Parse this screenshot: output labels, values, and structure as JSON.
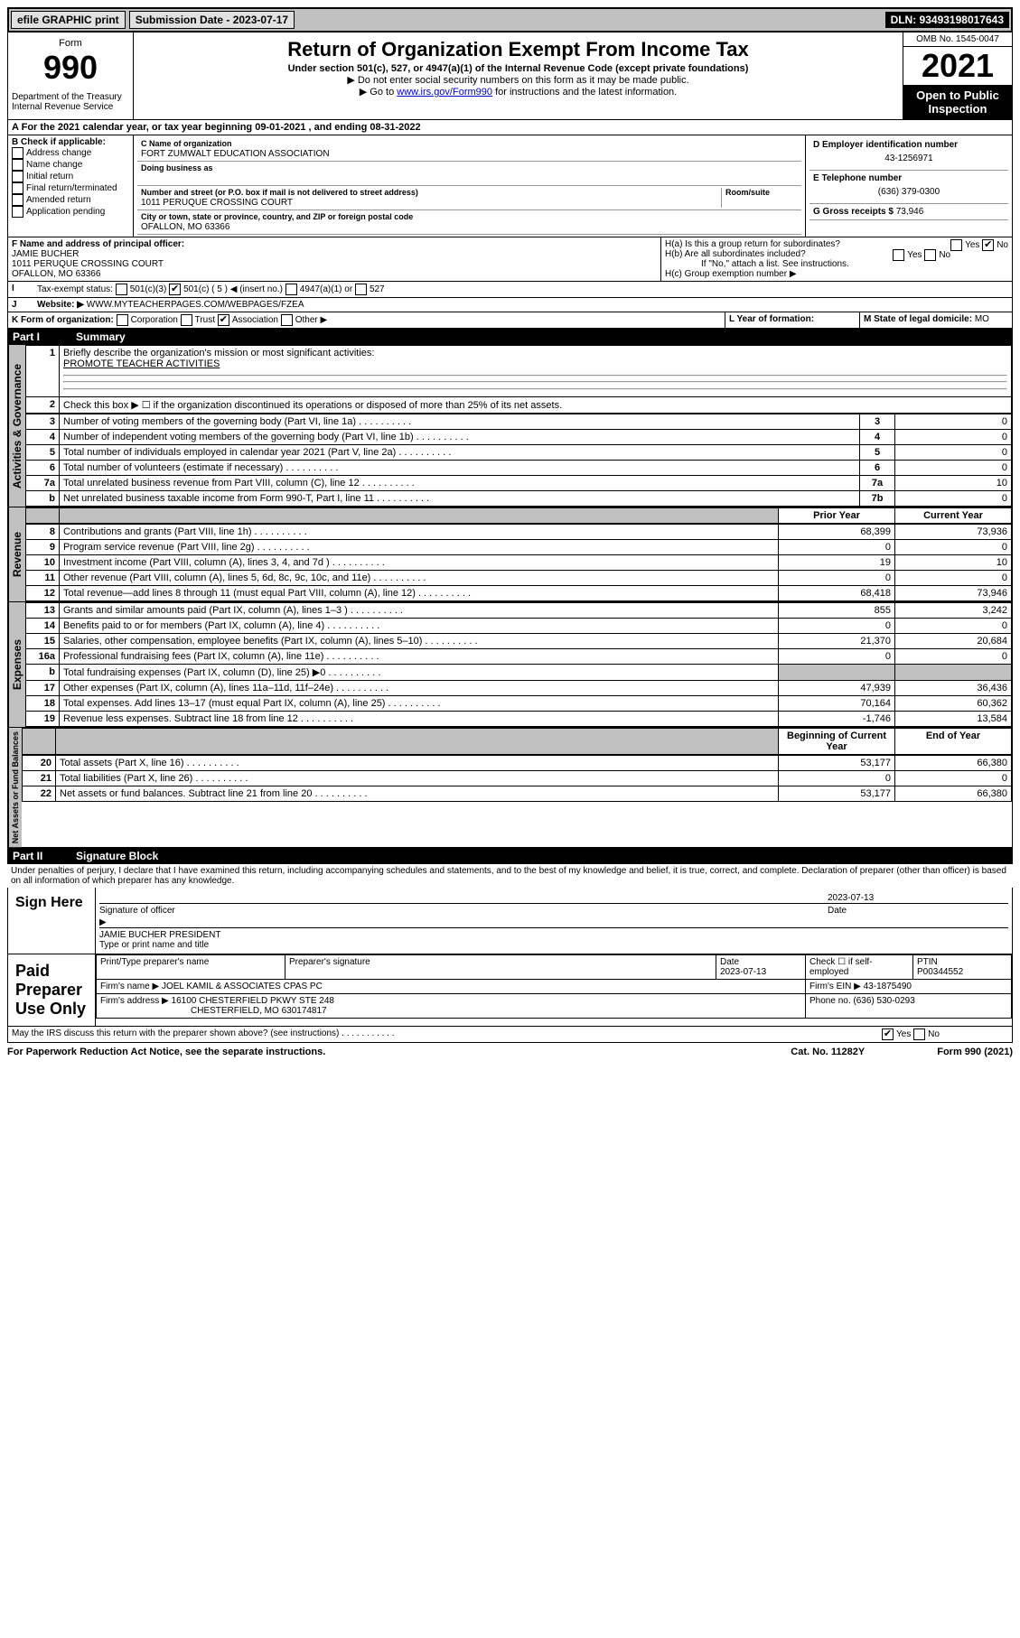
{
  "topbar": {
    "efile": "efile GRAPHIC print",
    "submission_label": "Submission Date - 2023-07-17",
    "dln": "DLN: 93493198017643"
  },
  "header": {
    "form_label": "Form",
    "form_number": "990",
    "dept": "Department of the Treasury\nInternal Revenue Service",
    "title": "Return of Organization Exempt From Income Tax",
    "subtitle": "Under section 501(c), 527, or 4947(a)(1) of the Internal Revenue Code (except private foundations)",
    "note1": "▶ Do not enter social security numbers on this form as it may be made public.",
    "note2_prefix": "▶ Go to ",
    "note2_link": "www.irs.gov/Form990",
    "note2_suffix": " for instructions and the latest information.",
    "omb": "OMB No. 1545-0047",
    "tax_year": "2021",
    "open_public": "Open to Public Inspection"
  },
  "line_A": "For the 2021 calendar year, or tax year beginning 09-01-2021   , and ending 08-31-2022",
  "block_B": {
    "label": "B Check if applicable:",
    "items": [
      "Address change",
      "Name change",
      "Initial return",
      "Final return/terminated",
      "Amended return",
      "Application pending"
    ]
  },
  "block_C": {
    "name_label": "C Name of organization",
    "name": "FORT ZUMWALT EDUCATION ASSOCIATION",
    "dba_label": "Doing business as",
    "dba": "",
    "street_label": "Number and street (or P.O. box if mail is not delivered to street address)",
    "room_label": "Room/suite",
    "street": "1011 PERUQUE CROSSING COURT",
    "city_label": "City or town, state or province, country, and ZIP or foreign postal code",
    "city": "OFALLON, MO  63366"
  },
  "block_D": {
    "ein_label": "D Employer identification number",
    "ein": "43-1256971",
    "phone_label": "E Telephone number",
    "phone": "(636) 379-0300",
    "gross_label": "G Gross receipts $",
    "gross": "73,946"
  },
  "block_F": {
    "label": "F Name and address of principal officer:",
    "name": "JAMIE BUCHER",
    "addr1": "1011 PERUQUE CROSSING COURT",
    "addr2": "OFALLON, MO  63366"
  },
  "block_H": {
    "a": "H(a)  Is this a group return for subordinates?",
    "b": "H(b)  Are all subordinates included?",
    "b_note": "If \"No,\" attach a list. See instructions.",
    "c": "H(c)  Group exemption number ▶"
  },
  "line_I": {
    "label": "Tax-exempt status:",
    "opts": [
      "501(c)(3)",
      "501(c) ( 5 ) ◀ (insert no.)",
      "4947(a)(1) or",
      "527"
    ]
  },
  "line_J": {
    "label": "Website: ▶",
    "value": "WWW.MYTEACHERPAGES.COM/WEBPAGES/FZEA"
  },
  "line_K": {
    "label": "K Form of organization:",
    "opts": [
      "Corporation",
      "Trust",
      "Association",
      "Other ▶"
    ]
  },
  "line_L": {
    "label": "L Year of formation:",
    "value": ""
  },
  "line_M": {
    "label": "M State of legal domicile:",
    "value": "MO"
  },
  "part1": {
    "header_num": "Part I",
    "header_title": "Summary",
    "q1_label": "1",
    "q1": "Briefly describe the organization's mission or most significant activities:",
    "q1_ans": "PROMOTE TEACHER ACTIVITIES",
    "q2": "Check this box ▶ ☐  if the organization discontinued its operations or disposed of more than 25% of its net assets.",
    "governance_rows": [
      {
        "n": "3",
        "t": "Number of voting members of the governing body (Part VI, line 1a)",
        "box": "3",
        "v": "0"
      },
      {
        "n": "4",
        "t": "Number of independent voting members of the governing body (Part VI, line 1b)",
        "box": "4",
        "v": "0"
      },
      {
        "n": "5",
        "t": "Total number of individuals employed in calendar year 2021 (Part V, line 2a)",
        "box": "5",
        "v": "0"
      },
      {
        "n": "6",
        "t": "Total number of volunteers (estimate if necessary)",
        "box": "6",
        "v": "0"
      },
      {
        "n": "7a",
        "t": "Total unrelated business revenue from Part VIII, column (C), line 12",
        "box": "7a",
        "v": "10"
      },
      {
        "n": "b",
        "t": "Net unrelated business taxable income from Form 990-T, Part I, line 11",
        "box": "7b",
        "v": "0"
      }
    ],
    "col_prior": "Prior Year",
    "col_current": "Current Year",
    "revenue_rows": [
      {
        "n": "8",
        "t": "Contributions and grants (Part VIII, line 1h)",
        "p": "68,399",
        "c": "73,936"
      },
      {
        "n": "9",
        "t": "Program service revenue (Part VIII, line 2g)",
        "p": "0",
        "c": "0"
      },
      {
        "n": "10",
        "t": "Investment income (Part VIII, column (A), lines 3, 4, and 7d )",
        "p": "19",
        "c": "10"
      },
      {
        "n": "11",
        "t": "Other revenue (Part VIII, column (A), lines 5, 6d, 8c, 9c, 10c, and 11e)",
        "p": "0",
        "c": "0"
      },
      {
        "n": "12",
        "t": "Total revenue—add lines 8 through 11 (must equal Part VIII, column (A), line 12)",
        "p": "68,418",
        "c": "73,946"
      }
    ],
    "expense_rows": [
      {
        "n": "13",
        "t": "Grants and similar amounts paid (Part IX, column (A), lines 1–3 )",
        "p": "855",
        "c": "3,242"
      },
      {
        "n": "14",
        "t": "Benefits paid to or for members (Part IX, column (A), line 4)",
        "p": "0",
        "c": "0"
      },
      {
        "n": "15",
        "t": "Salaries, other compensation, employee benefits (Part IX, column (A), lines 5–10)",
        "p": "21,370",
        "c": "20,684"
      },
      {
        "n": "16a",
        "t": "Professional fundraising fees (Part IX, column (A), line 11e)",
        "p": "0",
        "c": "0"
      },
      {
        "n": "b",
        "t": "Total fundraising expenses (Part IX, column (D), line 25) ▶0",
        "p": "",
        "c": "",
        "grey": true
      },
      {
        "n": "17",
        "t": "Other expenses (Part IX, column (A), lines 11a–11d, 11f–24e)",
        "p": "47,939",
        "c": "36,436"
      },
      {
        "n": "18",
        "t": "Total expenses. Add lines 13–17 (must equal Part IX, column (A), line 25)",
        "p": "70,164",
        "c": "60,362"
      },
      {
        "n": "19",
        "t": "Revenue less expenses. Subtract line 18 from line 12",
        "p": "-1,746",
        "c": "13,584"
      }
    ],
    "col_begin": "Beginning of Current Year",
    "col_end": "End of Year",
    "net_rows": [
      {
        "n": "20",
        "t": "Total assets (Part X, line 16)",
        "p": "53,177",
        "c": "66,380"
      },
      {
        "n": "21",
        "t": "Total liabilities (Part X, line 26)",
        "p": "0",
        "c": "0"
      },
      {
        "n": "22",
        "t": "Net assets or fund balances. Subtract line 21 from line 20",
        "p": "53,177",
        "c": "66,380"
      }
    ],
    "vert_gov": "Activities & Governance",
    "vert_rev": "Revenue",
    "vert_exp": "Expenses",
    "vert_net": "Net Assets or Fund Balances"
  },
  "part2": {
    "header_num": "Part II",
    "header_title": "Signature Block",
    "penalty": "Under penalties of perjury, I declare that I have examined this return, including accompanying schedules and statements, and to the best of my knowledge and belief, it is true, correct, and complete. Declaration of preparer (other than officer) is based on all information of which preparer has any knowledge.",
    "sign_here": "Sign Here",
    "sig_officer": "Signature of officer",
    "sig_date": "2023-07-13",
    "officer_name": "JAMIE BUCHER PRESIDENT",
    "officer_name_label": "Type or print name and title",
    "paid": "Paid Preparer Use Only",
    "prep_name_label": "Print/Type preparer's name",
    "prep_sig_label": "Preparer's signature",
    "prep_date_label": "Date",
    "prep_date": "2023-07-13",
    "self_emp": "Check ☐ if self-employed",
    "ptin_label": "PTIN",
    "ptin": "P00344552",
    "firm_name_label": "Firm's name    ▶",
    "firm_name": "JOEL KAMIL & ASSOCIATES CPAS PC",
    "firm_ein_label": "Firm's EIN ▶",
    "firm_ein": "43-1875490",
    "firm_addr_label": "Firm's address ▶",
    "firm_addr1": "16100 CHESTERFIELD PKWY STE 248",
    "firm_addr2": "CHESTERFIELD, MO  630174817",
    "firm_phone_label": "Phone no.",
    "firm_phone": "(636) 530-0293",
    "may_irs": "May the IRS discuss this return with the preparer shown above? (see instructions)"
  },
  "footer": {
    "left": "For Paperwork Reduction Act Notice, see the separate instructions.",
    "mid": "Cat. No. 11282Y",
    "right": "Form 990 (2021)"
  }
}
